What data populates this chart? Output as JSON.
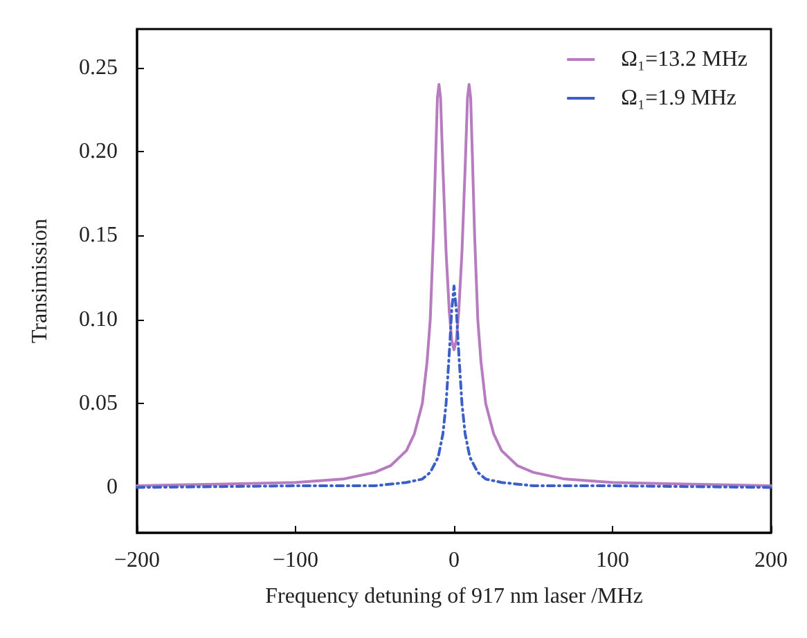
{
  "chart_data": {
    "type": "line",
    "xlabel": "Frequency detuning of 917 nm laser /MHz",
    "ylabel": "Transimission",
    "xlim": [
      -200,
      200
    ],
    "xticks": [
      -200,
      -100,
      0,
      100,
      200
    ],
    "ylim": [
      -0.027,
      0.273
    ],
    "yticks": [
      0,
      0.05,
      {
        "value": 0.1,
        "label": "0.10"
      },
      0.15,
      {
        "value": 0.2,
        "label": "0.20"
      },
      0.25
    ],
    "grid": false,
    "legend": "top right",
    "marker": "none",
    "series": [
      {
        "name": "Ω₁=13.2 MHz",
        "color": "#b77cc0",
        "line_style": "solid",
        "x": [
          -200,
          -150,
          -100,
          -70,
          -50,
          -40,
          -30,
          -25,
          -20,
          -17,
          -15,
          -13,
          -11.5,
          -10.5,
          -9.5,
          -8.5,
          -7,
          -5,
          -3,
          -1.5,
          0,
          1.5,
          3,
          5,
          7,
          8.5,
          9.5,
          10.5,
          11.5,
          13,
          15,
          17,
          20,
          25,
          30,
          40,
          50,
          70,
          100,
          150,
          200
        ],
        "values": [
          0.001,
          0.002,
          0.003,
          0.005,
          0.009,
          0.013,
          0.022,
          0.032,
          0.05,
          0.075,
          0.1,
          0.15,
          0.2,
          0.232,
          0.24,
          0.232,
          0.19,
          0.14,
          0.105,
          0.088,
          0.082,
          0.088,
          0.105,
          0.14,
          0.19,
          0.232,
          0.24,
          0.232,
          0.2,
          0.15,
          0.1,
          0.075,
          0.05,
          0.032,
          0.022,
          0.013,
          0.009,
          0.005,
          0.003,
          0.002,
          0.001
        ]
      },
      {
        "name": "Ω₁=1.9 MHz",
        "color": "#3a5fc8",
        "line_style": "dashed",
        "x": [
          -200,
          -100,
          -50,
          -30,
          -20,
          -15,
          -10,
          -7,
          -5,
          -3,
          -1.5,
          0,
          1.5,
          3,
          5,
          7,
          10,
          15,
          20,
          30,
          50,
          100,
          200
        ],
        "values": [
          0,
          0.001,
          0.001,
          0.003,
          0.005,
          0.009,
          0.018,
          0.032,
          0.05,
          0.08,
          0.105,
          0.12,
          0.105,
          0.08,
          0.05,
          0.032,
          0.018,
          0.009,
          0.005,
          0.003,
          0.001,
          0.001,
          0
        ]
      }
    ]
  }
}
